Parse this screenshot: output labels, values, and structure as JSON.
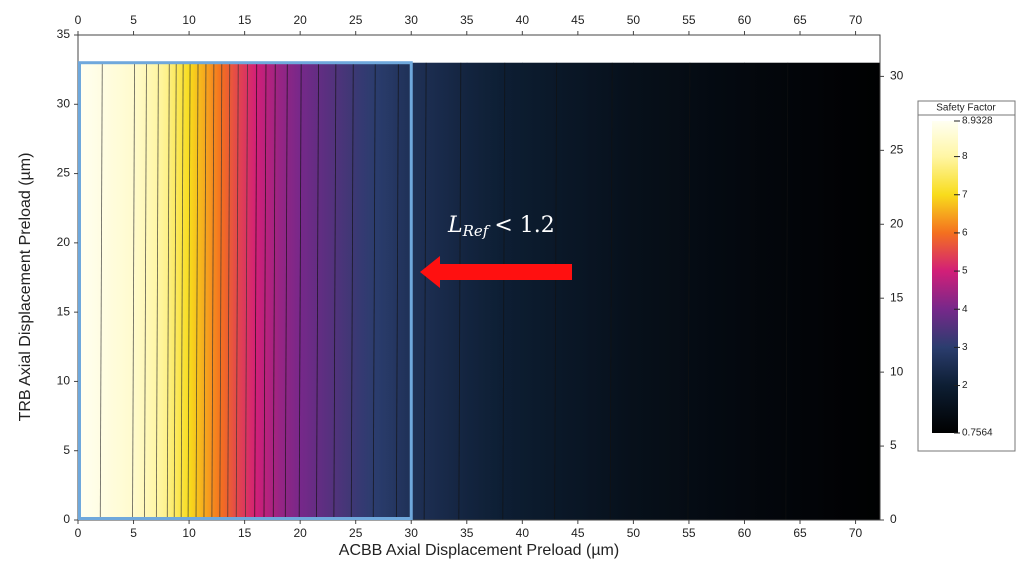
{
  "chart_data": {
    "type": "contour",
    "x_label": "ACBB Axial Displacement Preload (µm)",
    "y_label": "TRB Axial Displacement Preload (µm)",
    "xlim": [
      0,
      72.2
    ],
    "xticks": [
      0,
      5,
      10,
      15,
      20,
      25,
      30,
      35,
      40,
      45,
      50,
      55,
      60,
      65,
      70
    ],
    "ylim": [
      0,
      35
    ],
    "yticks": [
      0,
      5,
      10,
      15,
      20,
      25,
      30,
      35
    ],
    "y2lim": [
      0,
      32.8
    ],
    "y2ticks": [
      0,
      5,
      10,
      15,
      20,
      25,
      30
    ],
    "field_ylim": [
      0,
      33
    ],
    "x": [
      0,
      5,
      8,
      10,
      12,
      14,
      16,
      18,
      20,
      25,
      30,
      35,
      40,
      50,
      60,
      72.2
    ],
    "z": [
      8.93,
      8.5,
      7.8,
      7.0,
      6.3,
      5.6,
      5.0,
      4.4,
      4.0,
      3.2,
      2.6,
      2.2,
      1.9,
      1.4,
      1.1,
      0.78
    ],
    "contour_step": 0.25,
    "colorbar": {
      "title": "Safety Factor",
      "clim": [
        0.7564,
        8.9328
      ],
      "ticks": [
        0.7564,
        2,
        3,
        4,
        5,
        6,
        7,
        8,
        8.9328
      ],
      "colormap": [
        [
          0.7564,
          "#000000"
        ],
        [
          2,
          "#0d1e33"
        ],
        [
          3,
          "#2b3d6e"
        ],
        [
          4,
          "#76288a"
        ],
        [
          5,
          "#d21f78"
        ],
        [
          6,
          "#f4701f"
        ],
        [
          7,
          "#f8dc1c"
        ],
        [
          8,
          "#fff6a4"
        ],
        [
          8.9328,
          "#fffff2"
        ]
      ]
    },
    "highlight": {
      "xlim": [
        0,
        30
      ],
      "ylim": [
        0,
        33
      ],
      "color": "#6fa8dc"
    },
    "annotation": {
      "main": "L",
      "sub": "Ref",
      "rest": "< 1.2",
      "arrow_color": "#ff1010"
    }
  }
}
